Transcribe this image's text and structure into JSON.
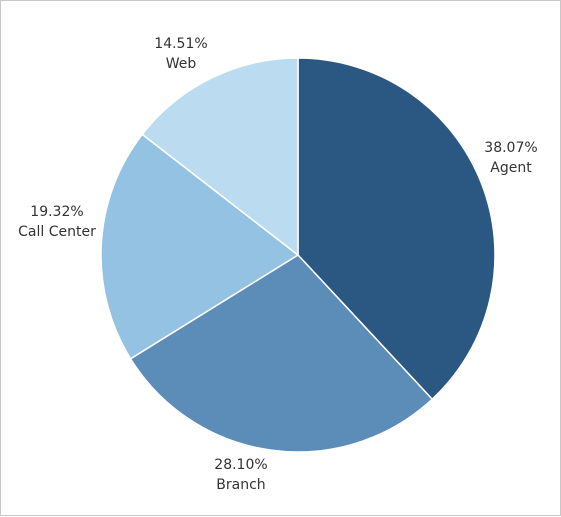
{
  "chart_data": {
    "type": "pie",
    "start_angle_deg": 0,
    "direction": "clockwise",
    "slices": [
      {
        "label": "Agent",
        "percent_label": "38.07%",
        "value": 38.07,
        "color": "#2b5783"
      },
      {
        "label": "Branch",
        "percent_label": "28.10%",
        "value": 28.1,
        "color": "#5b8db8"
      },
      {
        "label": "Call Center",
        "percent_label": "19.32%",
        "value": 19.32,
        "color": "#94c2e2"
      },
      {
        "label": "Web",
        "percent_label": "14.51%",
        "value": 14.51,
        "color": "#bbdcf0"
      }
    ]
  }
}
